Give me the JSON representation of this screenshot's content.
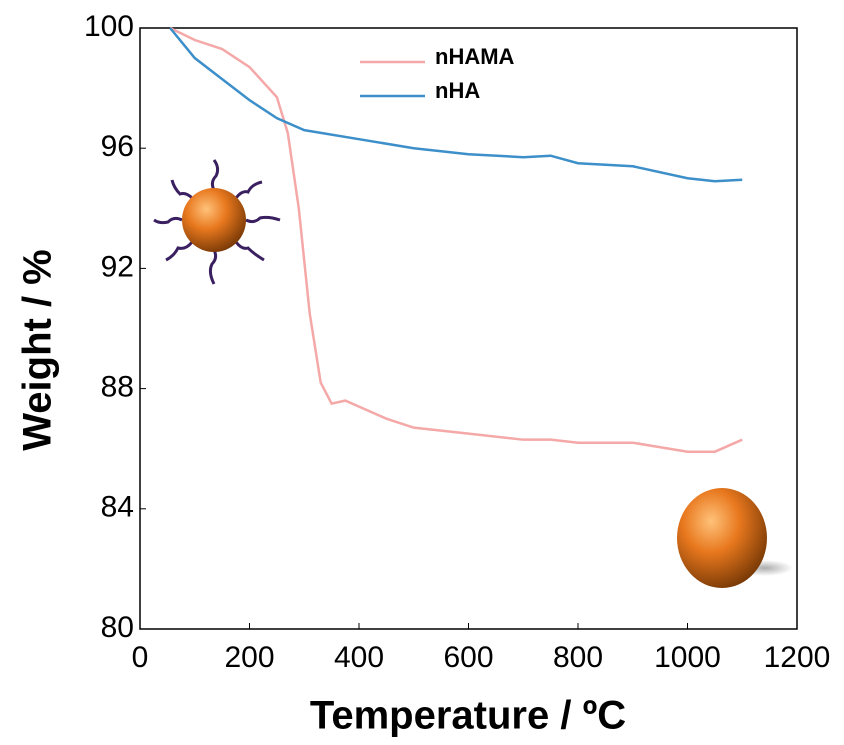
{
  "chart_data": {
    "type": "line",
    "x_label": "Temperature / ºC",
    "y_label": "Weight / %",
    "xlim": [
      0,
      1200
    ],
    "xticks": [
      0,
      200,
      400,
      600,
      800,
      1000,
      1200
    ],
    "ylim": [
      80,
      100
    ],
    "yticks": [
      80,
      84,
      88,
      92,
      96,
      100
    ],
    "legend": "top",
    "series": [
      {
        "name": "nHAMA",
        "color": "#f4a8a8",
        "x": [
          55,
          100,
          150,
          200,
          250,
          270,
          290,
          310,
          330,
          350,
          375,
          400,
          450,
          500,
          600,
          700,
          750,
          800,
          900,
          1000,
          1050,
          1100
        ],
        "values": [
          100,
          99.6,
          99.3,
          98.7,
          97.7,
          96.5,
          94,
          90.5,
          88.2,
          87.5,
          87.6,
          87.4,
          87.0,
          86.7,
          86.5,
          86.3,
          86.3,
          86.2,
          86.2,
          85.9,
          85.9,
          86.3
        ]
      },
      {
        "name": "nHA",
        "color": "#3d8fc9",
        "x": [
          55,
          100,
          150,
          200,
          250,
          300,
          400,
          500,
          600,
          700,
          750,
          800,
          900,
          1000,
          1050,
          1100
        ],
        "values": [
          100,
          99.0,
          98.3,
          97.6,
          97.0,
          96.6,
          96.3,
          96.0,
          95.8,
          95.7,
          95.75,
          95.5,
          95.4,
          95.0,
          94.9,
          94.95
        ]
      }
    ]
  }
}
